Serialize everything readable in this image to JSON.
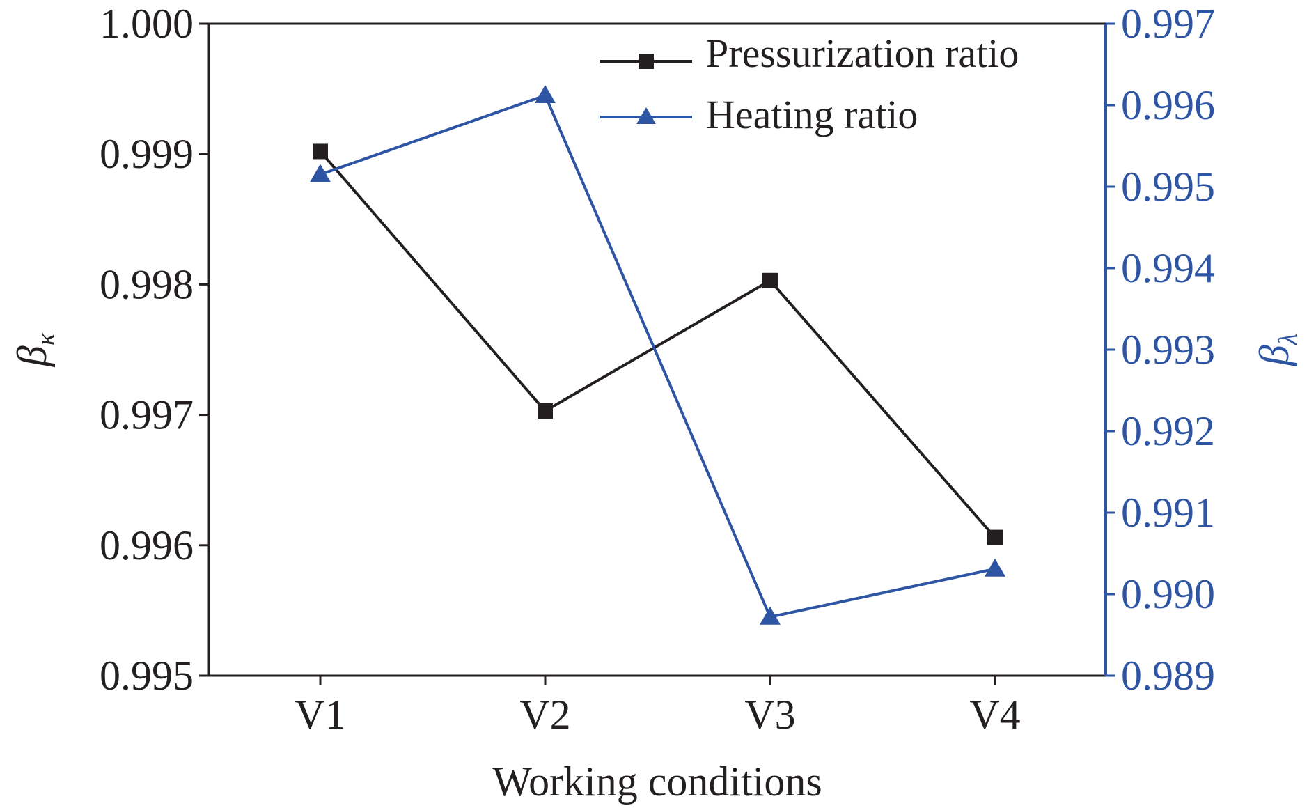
{
  "chart_data": {
    "type": "line",
    "categories": [
      "V1",
      "V2",
      "V3",
      "V4"
    ],
    "xlabel": "Working conditions",
    "ylabel_left": {
      "main": "β",
      "sub": "κ"
    },
    "ylabel_right": {
      "main": "β",
      "sub": "λ"
    },
    "ylim_left": [
      0.995,
      1.0
    ],
    "ylim_right": [
      0.989,
      0.997
    ],
    "yticks_left": [
      "0.995",
      "0.996",
      "0.997",
      "0.998",
      "0.999",
      "1.000"
    ],
    "yticks_right": [
      "0.989",
      "0.990",
      "0.991",
      "0.992",
      "0.993",
      "0.994",
      "0.995",
      "0.996",
      "0.997"
    ],
    "legend_position": "top-right",
    "grid": false,
    "series": [
      {
        "name": "Pressurization ratio",
        "axis": "left",
        "marker": "square",
        "color": "#231f20",
        "values": [
          0.99902,
          0.99703,
          0.99803,
          0.99606
        ]
      },
      {
        "name": "Heating ratio",
        "axis": "right",
        "marker": "triangle",
        "color": "#2e55a4",
        "values": [
          0.99515,
          0.99612,
          0.98972,
          0.99031
        ]
      }
    ],
    "colors": {
      "axis_left": "#231f20",
      "axis_right": "#2e55a4"
    }
  }
}
